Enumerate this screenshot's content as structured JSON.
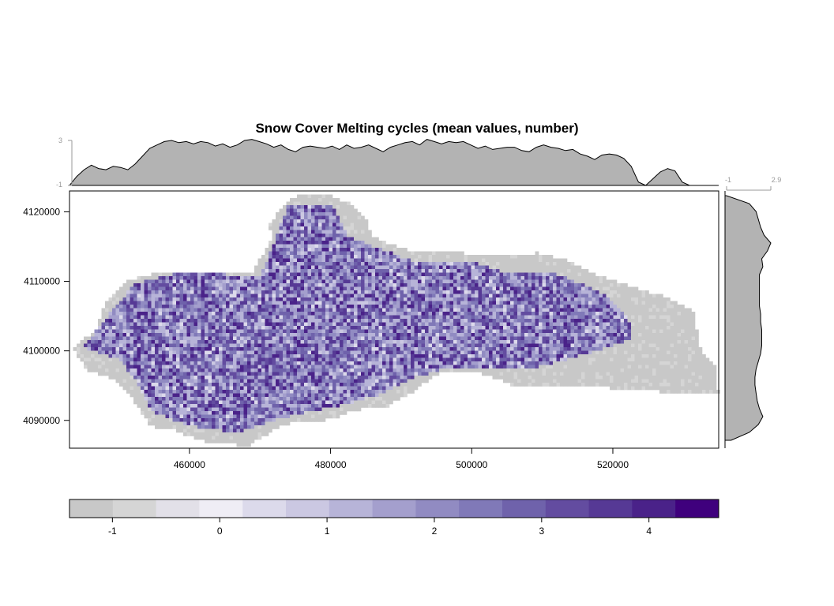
{
  "chart_data": {
    "type": "heatmap",
    "title": "Snow Cover Melting cycles (mean values, number)",
    "xlim": [
      443000,
      535000
    ],
    "ylim": [
      4086000,
      4123000
    ],
    "x_ticks": [
      460000,
      480000,
      500000,
      520000
    ],
    "y_ticks": [
      4090000,
      4100000,
      4110000,
      4120000
    ],
    "x_tick_labels": [
      "460000",
      "480000",
      "500000",
      "520000"
    ],
    "y_tick_labels": [
      "4090000",
      "4100000",
      "4110000",
      "4120000"
    ],
    "colorbar": {
      "range": [
        -1.4,
        4.65
      ],
      "ticks": [
        -1,
        0,
        1,
        2,
        3,
        4
      ],
      "tick_labels": [
        "-1",
        "0",
        "1",
        "2",
        "3",
        "4"
      ],
      "colors": [
        "#c8c8c8",
        "#d5d5d5",
        "#e2e0e8",
        "#efedf5",
        "#dcdaeb",
        "#cbc8e2",
        "#b7b4d8",
        "#a49fcd",
        "#918bc2",
        "#8079b8",
        "#6f62ab",
        "#634ca0",
        "#563995",
        "#4a2289",
        "#3f007d"
      ]
    },
    "top_marginal": {
      "range_labels": [
        "3",
        "-1"
      ],
      "profile": [
        -1.0,
        -0.2,
        0.4,
        0.8,
        0.5,
        0.4,
        0.7,
        0.6,
        0.4,
        0.9,
        1.6,
        2.3,
        2.6,
        2.9,
        3.0,
        2.8,
        2.9,
        2.7,
        2.9,
        2.8,
        2.5,
        2.7,
        2.4,
        2.6,
        3.0,
        3.1,
        2.9,
        2.7,
        2.4,
        2.6,
        2.2,
        2.0,
        2.4,
        2.5,
        2.4,
        2.3,
        2.5,
        2.2,
        2.6,
        2.3,
        2.4,
        2.6,
        2.3,
        2.0,
        2.4,
        2.6,
        2.8,
        2.9,
        2.6,
        3.1,
        2.9,
        2.7,
        2.9,
        2.8,
        2.9,
        2.6,
        2.3,
        2.5,
        2.2,
        2.3,
        2.4,
        2.4,
        2.1,
        2.0,
        2.4,
        2.6,
        2.4,
        2.3,
        2.1,
        2.2,
        1.8,
        1.6,
        1.3,
        1.7,
        1.8,
        1.7,
        1.4,
        0.7,
        -0.7,
        -1.0,
        -0.4,
        0.2,
        0.5,
        0.3,
        -0.7,
        -1.0,
        -1.0,
        -1.0,
        -1.0,
        -1.0
      ]
    },
    "right_marginal": {
      "range_labels": [
        "-1",
        "2.9"
      ],
      "profile": [
        -1.0,
        1.0,
        1.6,
        1.8,
        2.0,
        2.3,
        2.9,
        2.6,
        2.1,
        2.2,
        1.9,
        1.9,
        1.9,
        1.9,
        1.9,
        2.0,
        2.0,
        2.1,
        2.1,
        2.1,
        2.0,
        1.8,
        1.6,
        1.5,
        1.5,
        1.6,
        1.7,
        1.9,
        2.2,
        1.8,
        1.0,
        -0.6
      ]
    },
    "grid": false
  }
}
